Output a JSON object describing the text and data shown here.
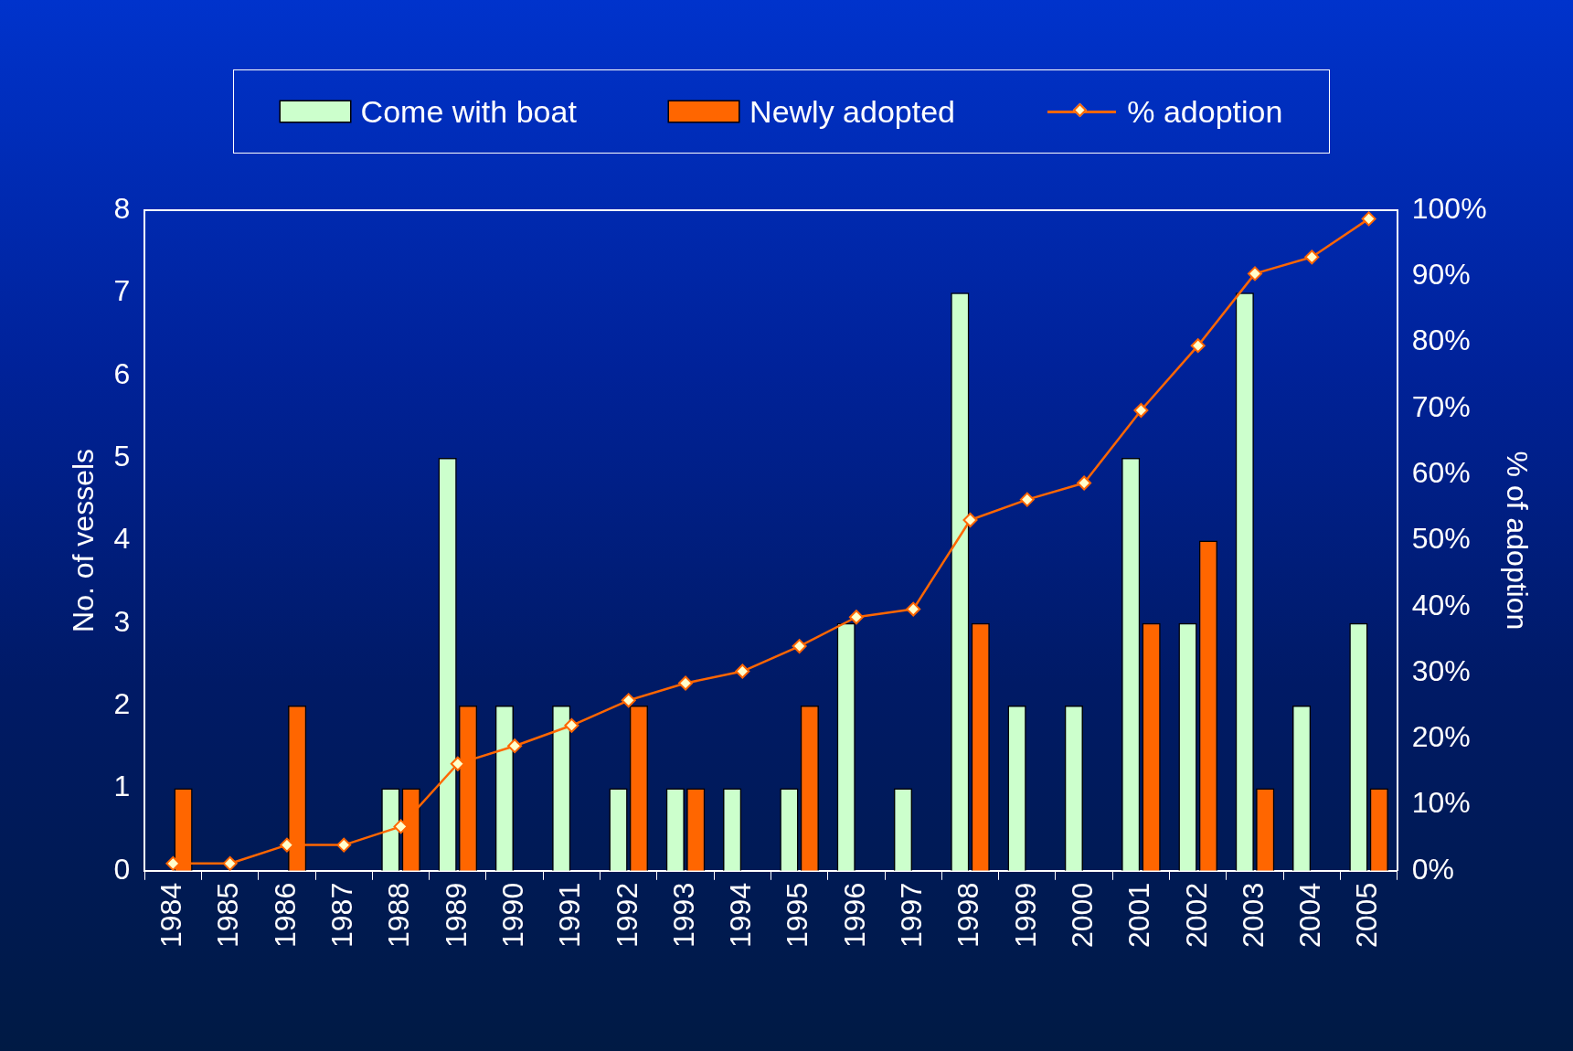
{
  "chart_data": {
    "type": "bar",
    "categories": [
      "1984",
      "1985",
      "1986",
      "1987",
      "1988",
      "1989",
      "1990",
      "1991",
      "1992",
      "1993",
      "1994",
      "1995",
      "1996",
      "1997",
      "1998",
      "1999",
      "2000",
      "2001",
      "2002",
      "2003",
      "2004",
      "2005"
    ],
    "series": [
      {
        "name": "Come with boat",
        "color": "#ccffcc",
        "values": [
          0,
          0,
          0,
          0,
          1,
          5,
          2,
          2,
          1,
          1,
          1,
          1,
          3,
          1,
          7,
          2,
          2,
          5,
          3,
          7,
          2,
          3
        ]
      },
      {
        "name": "Newly adopted",
        "color": "#ff6600",
        "values": [
          1,
          0,
          2,
          0,
          1,
          2,
          0,
          0,
          2,
          1,
          0,
          2,
          0,
          0,
          3,
          0,
          0,
          3,
          4,
          1,
          0,
          1
        ]
      },
      {
        "name": "% adoption",
        "type": "line",
        "axis": "y2",
        "color": "#ff6600",
        "marker": "diamond",
        "values": [
          1.1,
          1.1,
          3.9,
          3.9,
          6.7,
          16.2,
          18.9,
          22,
          25.8,
          28.4,
          30.2,
          34,
          38.4,
          39.6,
          53.1,
          56.2,
          58.7,
          69.7,
          79.5,
          90.4,
          92.9,
          98.7
        ]
      }
    ],
    "ylabel": "No. of vessels",
    "y2label": "% of adoption",
    "ylim": [
      0,
      8
    ],
    "yticks": [
      0,
      1,
      2,
      3,
      4,
      5,
      6,
      7,
      8
    ],
    "y2lim": [
      0,
      100
    ],
    "y2ticks": [
      {
        "value": 0,
        "label": "0%"
      },
      {
        "value": 10,
        "label": "10%"
      },
      {
        "value": 20,
        "label": "20%"
      },
      {
        "value": 30,
        "label": "30%"
      },
      {
        "value": 40,
        "label": "40%"
      },
      {
        "value": 50,
        "label": "50%"
      },
      {
        "value": 60,
        "label": "60%"
      },
      {
        "value": 70,
        "label": "70%"
      },
      {
        "value": 80,
        "label": "80%"
      },
      {
        "value": 90,
        "label": "90%"
      },
      {
        "value": 100,
        "label": "100%"
      }
    ],
    "grid": false,
    "legend": "top"
  }
}
